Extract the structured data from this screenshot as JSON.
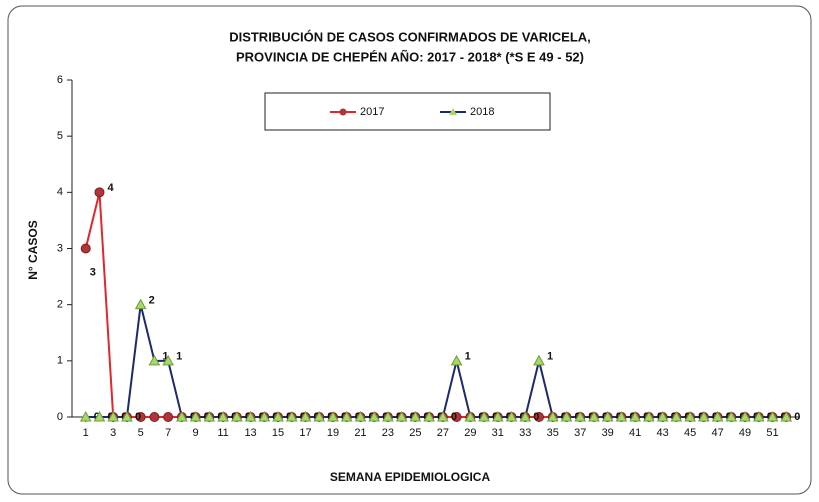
{
  "chart_data": {
    "type": "line",
    "title": "DISTRIBUCIÓN DE CASOS CONFIRMADOS DE VARICELA,",
    "subtitle": "PROVINCIA  DE CHEPÉN AÑO:  2017 - 2018* (*S E 49 - 52)",
    "xlabel": "SEMANA EPIDEMIOLOGICA",
    "ylabel": "N° CASOS",
    "x": [
      1,
      2,
      3,
      4,
      5,
      6,
      7,
      8,
      9,
      10,
      11,
      12,
      13,
      14,
      15,
      16,
      17,
      18,
      19,
      20,
      21,
      22,
      23,
      24,
      25,
      26,
      27,
      28,
      29,
      30,
      31,
      32,
      33,
      34,
      35,
      36,
      37,
      38,
      39,
      40,
      41,
      42,
      43,
      44,
      45,
      46,
      47,
      48,
      49,
      50,
      51,
      52
    ],
    "xlim": [
      0,
      53
    ],
    "xticks": [
      1,
      3,
      5,
      7,
      9,
      11,
      13,
      15,
      17,
      19,
      21,
      23,
      25,
      27,
      29,
      31,
      33,
      35,
      37,
      39,
      41,
      43,
      45,
      47,
      49,
      51
    ],
    "ylim": [
      0,
      6
    ],
    "yticks": [
      0,
      1,
      2,
      3,
      4,
      5,
      6
    ],
    "legend": "top",
    "series": [
      {
        "name": "2017",
        "color": "#e3262b",
        "values": [
          3,
          4,
          0,
          0,
          0,
          0,
          0,
          0,
          0,
          0,
          0,
          0,
          0,
          0,
          0,
          0,
          0,
          0,
          0,
          0,
          0,
          0,
          0,
          0,
          0,
          0,
          0,
          0,
          0,
          0,
          0,
          0,
          0,
          0,
          0,
          0,
          0,
          0,
          0,
          0,
          0,
          0,
          0,
          0,
          0,
          0,
          0,
          0,
          0,
          0,
          0,
          0
        ]
      },
      {
        "name": "2018",
        "color": "#1c2a6b",
        "values": [
          0,
          0,
          0,
          0,
          2,
          1,
          1,
          0,
          0,
          0,
          0,
          0,
          0,
          0,
          0,
          0,
          0,
          0,
          0,
          0,
          0,
          0,
          0,
          0,
          0,
          0,
          0,
          1,
          0,
          0,
          0,
          0,
          0,
          1,
          0,
          0,
          0,
          0,
          0,
          0,
          0,
          0,
          0,
          0,
          0,
          0,
          0,
          0,
          0,
          0,
          0,
          0
        ]
      }
    ]
  }
}
